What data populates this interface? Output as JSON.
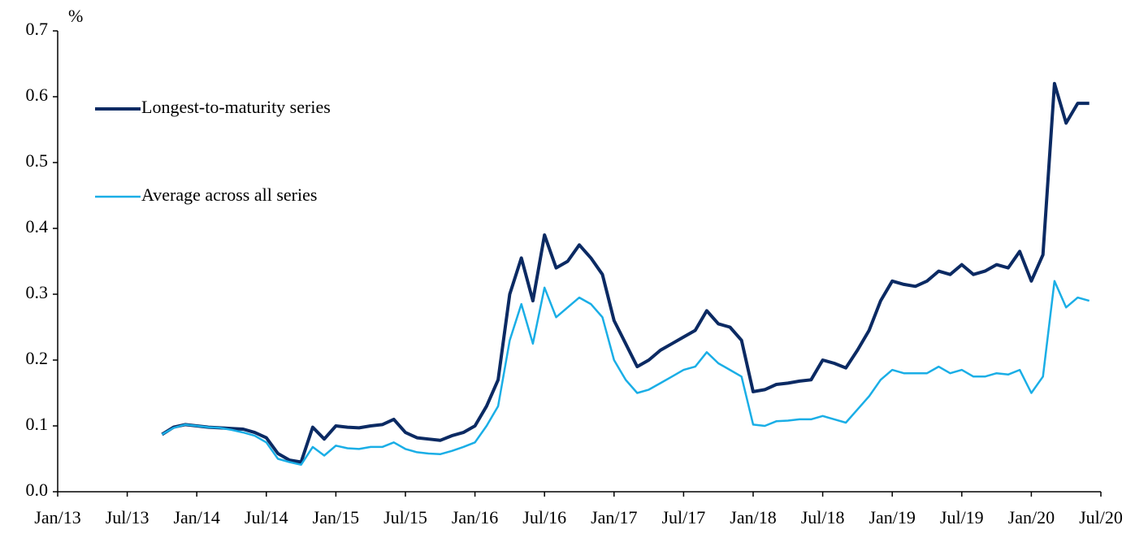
{
  "chart_data": {
    "type": "line",
    "y_label": "%",
    "x": [
      "2013-10",
      "2013-11",
      "2013-12",
      "2014-01",
      "2014-02",
      "2014-03",
      "2014-04",
      "2014-05",
      "2014-06",
      "2014-07",
      "2014-08",
      "2014-09",
      "2014-10",
      "2014-11",
      "2014-12",
      "2015-01",
      "2015-02",
      "2015-03",
      "2015-04",
      "2015-05",
      "2015-06",
      "2015-07",
      "2015-08",
      "2015-09",
      "2015-10",
      "2015-11",
      "2015-12",
      "2016-01",
      "2016-02",
      "2016-03",
      "2016-04",
      "2016-05",
      "2016-06",
      "2016-07",
      "2016-08",
      "2016-09",
      "2016-10",
      "2016-11",
      "2016-12",
      "2017-01",
      "2017-02",
      "2017-03",
      "2017-04",
      "2017-05",
      "2017-06",
      "2017-07",
      "2017-08",
      "2017-09",
      "2017-10",
      "2017-11",
      "2017-12",
      "2018-01",
      "2018-02",
      "2018-03",
      "2018-04",
      "2018-05",
      "2018-06",
      "2018-07",
      "2018-08",
      "2018-09",
      "2018-10",
      "2018-11",
      "2018-12",
      "2019-01",
      "2019-02",
      "2019-03",
      "2019-04",
      "2019-05",
      "2019-06",
      "2019-07",
      "2019-08",
      "2019-09",
      "2019-10",
      "2019-11",
      "2019-12",
      "2020-01",
      "2020-02",
      "2020-03",
      "2020-04",
      "2020-05",
      "2020-06"
    ],
    "series": [
      {
        "name": "Longest-to-maturity series",
        "color": "#0b2a63",
        "width": 4,
        "values": [
          0.087,
          0.098,
          0.102,
          0.1,
          0.098,
          0.097,
          0.096,
          0.095,
          0.09,
          0.082,
          0.058,
          0.048,
          0.045,
          0.098,
          0.08,
          0.1,
          0.098,
          0.097,
          0.1,
          0.102,
          0.11,
          0.09,
          0.082,
          0.08,
          0.078,
          0.085,
          0.09,
          0.1,
          0.13,
          0.17,
          0.3,
          0.355,
          0.29,
          0.39,
          0.34,
          0.35,
          0.375,
          0.355,
          0.33,
          0.26,
          0.225,
          0.19,
          0.2,
          0.215,
          0.225,
          0.235,
          0.245,
          0.275,
          0.255,
          0.25,
          0.23,
          0.152,
          0.155,
          0.163,
          0.165,
          0.168,
          0.17,
          0.2,
          0.195,
          0.188,
          0.215,
          0.245,
          0.29,
          0.32,
          0.315,
          0.312,
          0.32,
          0.335,
          0.33,
          0.345,
          0.33,
          0.335,
          0.345,
          0.34,
          0.365,
          0.32,
          0.36,
          0.62,
          0.56,
          0.59,
          0.59
        ]
      },
      {
        "name": "Average across all series",
        "color": "#1aaee6",
        "width": 2.5,
        "values": [
          0.087,
          0.097,
          0.102,
          0.1,
          0.098,
          0.097,
          0.094,
          0.09,
          0.085,
          0.075,
          0.05,
          0.045,
          0.041,
          0.068,
          0.055,
          0.07,
          0.066,
          0.065,
          0.068,
          0.068,
          0.075,
          0.065,
          0.06,
          0.058,
          0.057,
          0.062,
          0.068,
          0.075,
          0.1,
          0.13,
          0.23,
          0.285,
          0.225,
          0.31,
          0.265,
          0.28,
          0.295,
          0.285,
          0.265,
          0.2,
          0.17,
          0.15,
          0.155,
          0.165,
          0.175,
          0.185,
          0.19,
          0.212,
          0.195,
          0.185,
          0.175,
          0.102,
          0.1,
          0.107,
          0.108,
          0.11,
          0.11,
          0.115,
          0.11,
          0.105,
          0.125,
          0.145,
          0.17,
          0.185,
          0.18,
          0.18,
          0.18,
          0.19,
          0.18,
          0.185,
          0.175,
          0.175,
          0.18,
          0.178,
          0.185,
          0.15,
          0.175,
          0.32,
          0.28,
          0.295,
          0.29
        ]
      }
    ],
    "xlim": [
      "2013-01",
      "2020-07"
    ],
    "xticks": [
      {
        "value": "2013-01",
        "label": "Jan/13"
      },
      {
        "value": "2013-07",
        "label": "Jul/13"
      },
      {
        "value": "2014-01",
        "label": "Jan/14"
      },
      {
        "value": "2014-07",
        "label": "Jul/14"
      },
      {
        "value": "2015-01",
        "label": "Jan/15"
      },
      {
        "value": "2015-07",
        "label": "Jul/15"
      },
      {
        "value": "2016-01",
        "label": "Jan/16"
      },
      {
        "value": "2016-07",
        "label": "Jul/16"
      },
      {
        "value": "2017-01",
        "label": "Jan/17"
      },
      {
        "value": "2017-07",
        "label": "Jul/17"
      },
      {
        "value": "2018-01",
        "label": "Jan/18"
      },
      {
        "value": "2018-07",
        "label": "Jul/18"
      },
      {
        "value": "2019-01",
        "label": "Jan/19"
      },
      {
        "value": "2019-07",
        "label": "Jul/19"
      },
      {
        "value": "2020-01",
        "label": "Jan/20"
      },
      {
        "value": "2020-07",
        "label": "Jul/20"
      }
    ],
    "ylim": [
      0,
      0.7
    ],
    "yticks": [
      {
        "value": 0,
        "label": "0.0"
      },
      0.1,
      0.2,
      0.3,
      0.4,
      0.5,
      0.6,
      0.7
    ],
    "grid": false
  }
}
